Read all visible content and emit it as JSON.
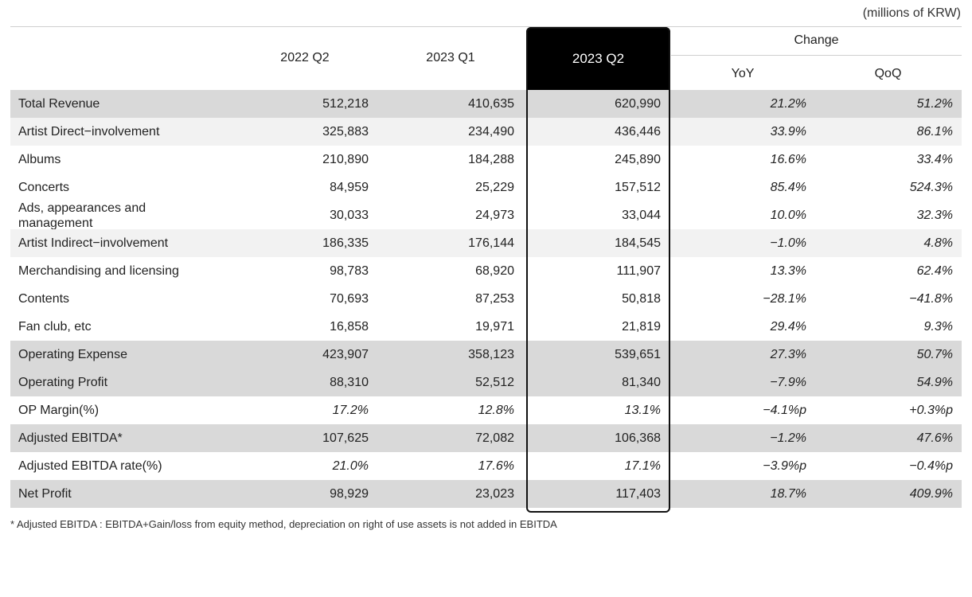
{
  "unit_note": "(millions of KRW)",
  "headers": {
    "col1": "2022 Q2",
    "col2": "2023 Q1",
    "col3": "2023 Q2",
    "change": "Change",
    "yoy": "YoY",
    "qoq": "QoQ"
  },
  "rows": [
    {
      "label": "Total Revenue",
      "v1": "512,218",
      "v2": "410,635",
      "v3": "620,990",
      "yoy": "21.2%",
      "qoq": "51.2%"
    },
    {
      "label": "Artist Direct−involvement",
      "v1": "325,883",
      "v2": "234,490",
      "v3": "436,446",
      "yoy": "33.9%",
      "qoq": "86.1%"
    },
    {
      "label": "Albums",
      "v1": "210,890",
      "v2": "184,288",
      "v3": "245,890",
      "yoy": "16.6%",
      "qoq": "33.4%"
    },
    {
      "label": "Concerts",
      "v1": "84,959",
      "v2": "25,229",
      "v3": "157,512",
      "yoy": "85.4%",
      "qoq": "524.3%"
    },
    {
      "label": "Ads, appearances and management",
      "v1": "30,033",
      "v2": "24,973",
      "v3": "33,044",
      "yoy": "10.0%",
      "qoq": "32.3%"
    },
    {
      "label": "Artist Indirect−involvement",
      "v1": "186,335",
      "v2": "176,144",
      "v3": "184,545",
      "yoy": "−1.0%",
      "qoq": "4.8%"
    },
    {
      "label": "Merchandising and licensing",
      "v1": "98,783",
      "v2": "68,920",
      "v3": "111,907",
      "yoy": "13.3%",
      "qoq": "62.4%"
    },
    {
      "label": "Contents",
      "v1": "70,693",
      "v2": "87,253",
      "v3": "50,818",
      "yoy": "−28.1%",
      "qoq": "−41.8%"
    },
    {
      "label": "Fan club, etc",
      "v1": "16,858",
      "v2": "19,971",
      "v3": "21,819",
      "yoy": "29.4%",
      "qoq": "9.3%"
    },
    {
      "label": "Operating Expense",
      "v1": "423,907",
      "v2": "358,123",
      "v3": "539,651",
      "yoy": "27.3%",
      "qoq": "50.7%"
    },
    {
      "label": "Operating Profit",
      "v1": "88,310",
      "v2": "52,512",
      "v3": "81,340",
      "yoy": "−7.9%",
      "qoq": "54.9%"
    },
    {
      "label": "OP Margin(%)",
      "v1": "17.2%",
      "v2": "12.8%",
      "v3": "13.1%",
      "yoy": "−4.1%p",
      "qoq": "+0.3%p"
    },
    {
      "label": "Adjusted EBITDA*",
      "v1": "107,625",
      "v2": "72,082",
      "v3": "106,368",
      "yoy": "−1.2%",
      "qoq": "47.6%"
    },
    {
      "label": "Adjusted EBITDA rate(%)",
      "v1": "21.0%",
      "v2": "17.6%",
      "v3": "17.1%",
      "yoy": "−3.9%p",
      "qoq": "−0.4%p"
    },
    {
      "label": "Net Profit",
      "v1": "98,929",
      "v2": "23,023",
      "v3": "117,403",
      "yoy": "18.7%",
      "qoq": "409.9%"
    }
  ],
  "footnote": "* Adjusted EBITDA : EBITDA+Gain/loss from equity method, depreciation on right of use assets is not added in EBITDA"
}
